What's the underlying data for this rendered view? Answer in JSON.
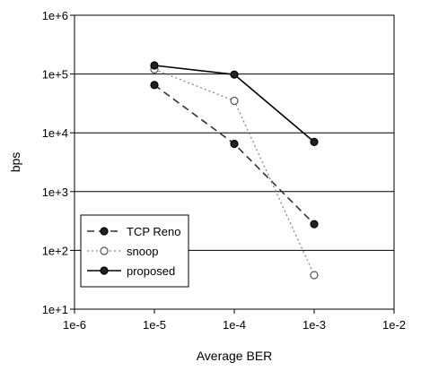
{
  "chart_data": {
    "type": "line",
    "xlabel": "Average BER",
    "ylabel": "bps",
    "x_scale": "log",
    "y_scale": "log",
    "xlim": [
      1e-06,
      0.01
    ],
    "ylim": [
      10,
      1000000
    ],
    "x_ticks": [
      1e-06,
      1e-05,
      0.0001,
      0.001,
      0.01
    ],
    "x_tick_labels": [
      "1e-6",
      "1e-5",
      "1e-4",
      "1e-3",
      "1e-2"
    ],
    "y_ticks": [
      10,
      100,
      1000,
      10000,
      100000,
      1000000
    ],
    "y_tick_labels": [
      "1e+1",
      "1e+2",
      "1e+3",
      "1e+4",
      "1e+5",
      "1e+6"
    ],
    "grid": "horizontal",
    "legend_position": "bottom-left",
    "x": [
      1e-05,
      0.0001,
      0.001
    ],
    "series": [
      {
        "name": "TCP Reno",
        "values": [
          65000,
          6500,
          280
        ],
        "line": "dashed",
        "marker": "filled-circle",
        "color": "#333333"
      },
      {
        "name": "snoop",
        "values": [
          120000,
          35000,
          38
        ],
        "line": "dotted",
        "marker": "open-circle",
        "color": "#888888"
      },
      {
        "name": "proposed",
        "values": [
          140000,
          98000,
          7000
        ],
        "line": "solid",
        "marker": "filled-circle",
        "color": "#000000"
      }
    ]
  }
}
